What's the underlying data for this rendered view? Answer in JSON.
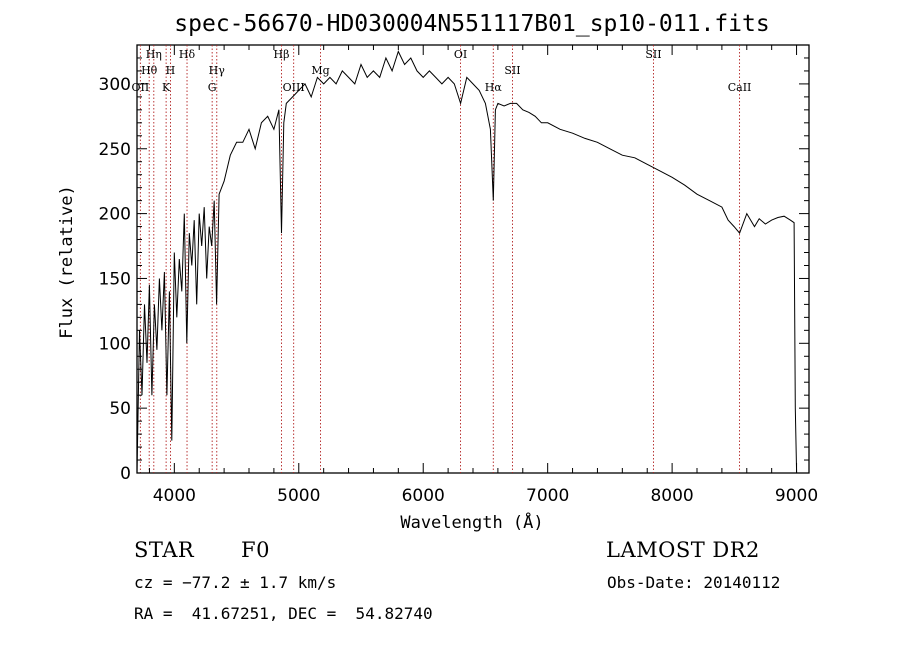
{
  "chart_data": {
    "type": "line",
    "title": "spec-56670-HD030004N551117B01_sp10-011.fits",
    "xlabel": "Wavelength (Å)",
    "ylabel": "Flux (relative)",
    "xlim": [
      3700,
      9100
    ],
    "ylim": [
      0,
      330
    ],
    "xticks": [
      4000,
      5000,
      6000,
      7000,
      8000,
      9000
    ],
    "yticks": [
      0,
      50,
      100,
      150,
      200,
      250,
      300
    ],
    "series": [
      {
        "x": [
          3700,
          3720,
          3740,
          3760,
          3780,
          3800,
          3820,
          3840,
          3860,
          3880,
          3900,
          3920,
          3940,
          3960,
          3980,
          4000,
          4020,
          4040,
          4060,
          4080,
          4100,
          4120,
          4140,
          4160,
          4180,
          4200,
          4220,
          4240,
          4260,
          4280,
          4300,
          4320,
          4340,
          4360,
          4380,
          4400,
          4450,
          4500,
          4550,
          4600,
          4650,
          4700,
          4750,
          4800,
          4840,
          4861,
          4880,
          4900,
          4950,
          5000,
          5050,
          5100,
          5150,
          5200,
          5250,
          5300,
          5350,
          5400,
          5450,
          5500,
          5550,
          5600,
          5650,
          5700,
          5750,
          5800,
          5850,
          5900,
          5950,
          6000,
          6050,
          6100,
          6150,
          6200,
          6250,
          6300,
          6350,
          6400,
          6450,
          6500,
          6540,
          6563,
          6580,
          6600,
          6650,
          6700,
          6750,
          6800,
          6850,
          6900,
          6950,
          7000,
          7100,
          7200,
          7300,
          7400,
          7500,
          7600,
          7700,
          7800,
          7900,
          8000,
          8100,
          8200,
          8300,
          8400,
          8450,
          8498,
          8542,
          8600,
          8662,
          8700,
          8750,
          8800,
          8850,
          8900,
          8950,
          8980,
          8990,
          9000
        ],
        "values": [
          0,
          110,
          60,
          130,
          85,
          145,
          60,
          130,
          95,
          150,
          110,
          155,
          60,
          140,
          25,
          170,
          120,
          165,
          140,
          200,
          100,
          185,
          160,
          195,
          130,
          200,
          175,
          205,
          150,
          190,
          175,
          210,
          130,
          215,
          220,
          225,
          245,
          255,
          255,
          265,
          250,
          270,
          275,
          265,
          280,
          185,
          270,
          285,
          290,
          295,
          300,
          290,
          305,
          300,
          305,
          300,
          310,
          305,
          300,
          315,
          305,
          310,
          305,
          320,
          310,
          325,
          315,
          320,
          310,
          305,
          310,
          305,
          300,
          305,
          300,
          285,
          305,
          300,
          295,
          285,
          265,
          210,
          280,
          285,
          283,
          285,
          285,
          280,
          278,
          275,
          270,
          270,
          265,
          262,
          258,
          255,
          250,
          245,
          243,
          238,
          233,
          228,
          222,
          215,
          210,
          205,
          195,
          190,
          185,
          200,
          190,
          196,
          192,
          195,
          197,
          198,
          195,
          193,
          50,
          0
        ]
      }
    ],
    "line_markers": [
      {
        "label": "OII",
        "x": 3727
      },
      {
        "label": "Hθ",
        "x": 3798
      },
      {
        "label": "Hη",
        "x": 3835
      },
      {
        "label": "K",
        "x": 3934
      },
      {
        "label": "H",
        "x": 3969
      },
      {
        "label": "Hδ",
        "x": 4102
      },
      {
        "label": "G",
        "x": 4304
      },
      {
        "label": "Hγ",
        "x": 4341
      },
      {
        "label": "Hβ",
        "x": 4861
      },
      {
        "label": "OIII",
        "x": 4959
      },
      {
        "label": "Mg",
        "x": 5175
      },
      {
        "label": "OI",
        "x": 6300
      },
      {
        "label": "Hα",
        "x": 6563
      },
      {
        "label": "SII",
        "x": 6717
      },
      {
        "label": "SII",
        "x": 7850
      },
      {
        "label": "CaII",
        "x": 8542
      }
    ]
  },
  "info": {
    "object_type": "STAR",
    "subclass": "F0",
    "survey": "LAMOST DR2",
    "cz": "cz = −77.2 ± 1.7 km/s",
    "obs_date": "Obs-Date: 20140112",
    "coords": "RA =  41.67251, DEC =  54.82740"
  }
}
